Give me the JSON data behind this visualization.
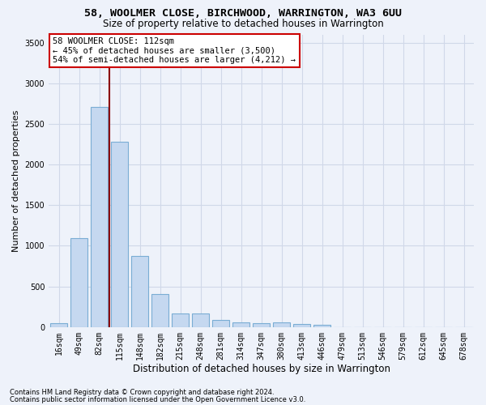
{
  "title1": "58, WOOLMER CLOSE, BIRCHWOOD, WARRINGTON, WA3 6UU",
  "title2": "Size of property relative to detached houses in Warrington",
  "xlabel": "Distribution of detached houses by size in Warrington",
  "ylabel": "Number of detached properties",
  "footnote1": "Contains HM Land Registry data © Crown copyright and database right 2024.",
  "footnote2": "Contains public sector information licensed under the Open Government Licence v3.0.",
  "annotation_title": "58 WOOLMER CLOSE: 112sqm",
  "annotation_line1": "← 45% of detached houses are smaller (3,500)",
  "annotation_line2": "54% of semi-detached houses are larger (4,212) →",
  "categories": [
    "16sqm",
    "49sqm",
    "82sqm",
    "115sqm",
    "148sqm",
    "182sqm",
    "215sqm",
    "248sqm",
    "281sqm",
    "314sqm",
    "347sqm",
    "380sqm",
    "413sqm",
    "446sqm",
    "479sqm",
    "513sqm",
    "546sqm",
    "579sqm",
    "612sqm",
    "645sqm",
    "678sqm"
  ],
  "values": [
    50,
    1090,
    2710,
    2280,
    880,
    410,
    170,
    165,
    90,
    60,
    50,
    55,
    35,
    30,
    0,
    0,
    0,
    0,
    0,
    0,
    0
  ],
  "bar_color": "#c5d8f0",
  "bar_edge_color": "#7aadd4",
  "vline_color": "#8b0000",
  "vline_x_index": 2,
  "grid_color": "#d0d8e8",
  "bg_color": "#eef2fa",
  "ylim": [
    0,
    3600
  ],
  "yticks": [
    0,
    500,
    1000,
    1500,
    2000,
    2500,
    3000,
    3500
  ],
  "title1_fontsize": 9.5,
  "title2_fontsize": 8.5,
  "ylabel_fontsize": 8,
  "xlabel_fontsize": 8.5,
  "tick_fontsize": 7,
  "annot_fontsize": 7.5,
  "footnote_fontsize": 6
}
